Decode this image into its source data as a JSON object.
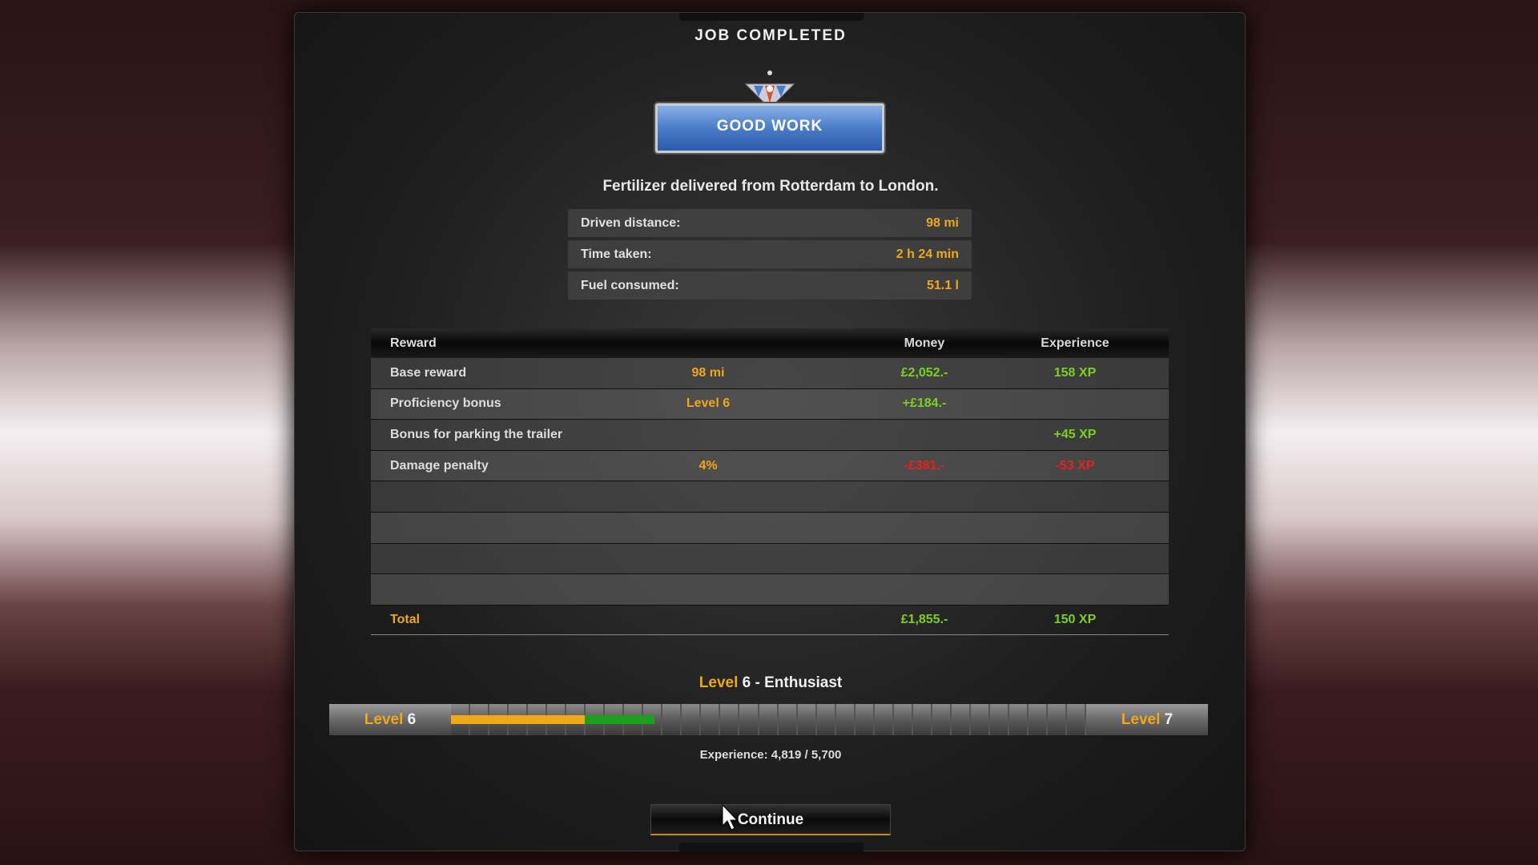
{
  "header": {
    "title": "JOB COMPLETED",
    "badge": "GOOD WORK"
  },
  "summary": "Fertilizer delivered from Rotterdam to London.",
  "stats": [
    {
      "label": "Driven distance:",
      "value": "98 mi"
    },
    {
      "label": "Time taken:",
      "value": "2 h 24 min"
    },
    {
      "label": "Fuel consumed:",
      "value": "51.1 l"
    }
  ],
  "table": {
    "headers": {
      "reward": "Reward",
      "money": "Money",
      "experience": "Experience"
    },
    "rows": [
      {
        "label": "Base reward",
        "detail": "98 mi",
        "money": "£2,052.-",
        "xp": "158 XP"
      },
      {
        "label": "Proficiency bonus",
        "detail": "Level 6",
        "money": "+£184.-",
        "xp": ""
      },
      {
        "label": "Bonus for parking the trailer",
        "detail": "",
        "money": "",
        "xp": "+45 XP"
      },
      {
        "label": "Damage penalty",
        "detail": "4%",
        "money": "-£381.-",
        "xp": "-53 XP"
      }
    ],
    "total": {
      "label": "Total",
      "money": "£1,855.-",
      "xp": "150 XP"
    }
  },
  "level": {
    "word": "Level",
    "current": "6",
    "title_suffix": " - Enthusiast",
    "next": "7",
    "experience_text": "Experience: 4,819 / 5,700",
    "progress_previous_fraction": 0.21,
    "progress_gained_fraction": 0.11,
    "colors": {
      "previous": "#f0a818",
      "gained": "#1aa01a"
    }
  },
  "continue_label": "Continue"
}
